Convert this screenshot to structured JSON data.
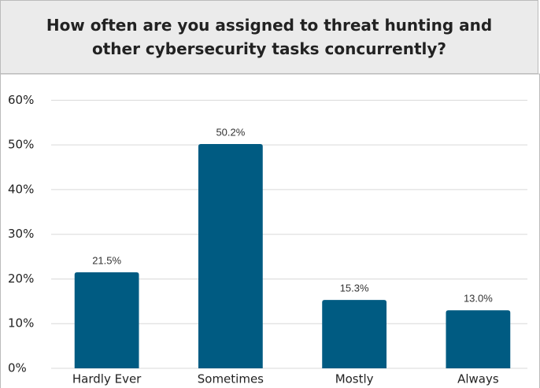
{
  "chart_data": {
    "type": "bar",
    "title": "How often are you assigned to threat hunting and other cybersecurity tasks concurrently?",
    "categories": [
      "Hardly Ever",
      "Sometimes",
      "Mostly",
      "Always"
    ],
    "values": [
      21.5,
      50.2,
      15.3,
      13.0
    ],
    "value_labels": [
      "21.5%",
      "50.2%",
      "15.3%",
      "13.0%"
    ],
    "color": "#005b82",
    "ylim": [
      0,
      65
    ],
    "yticks": [
      {
        "value": 0,
        "label": "0%"
      },
      {
        "value": 10,
        "label": "10%"
      },
      {
        "value": 20,
        "label": "20%"
      },
      {
        "value": 30,
        "label": "30%"
      },
      {
        "value": 40,
        "label": "40%"
      },
      {
        "value": 50,
        "label": "50%"
      },
      {
        "value": 60,
        "label": "60%"
      }
    ],
    "grid": true
  }
}
